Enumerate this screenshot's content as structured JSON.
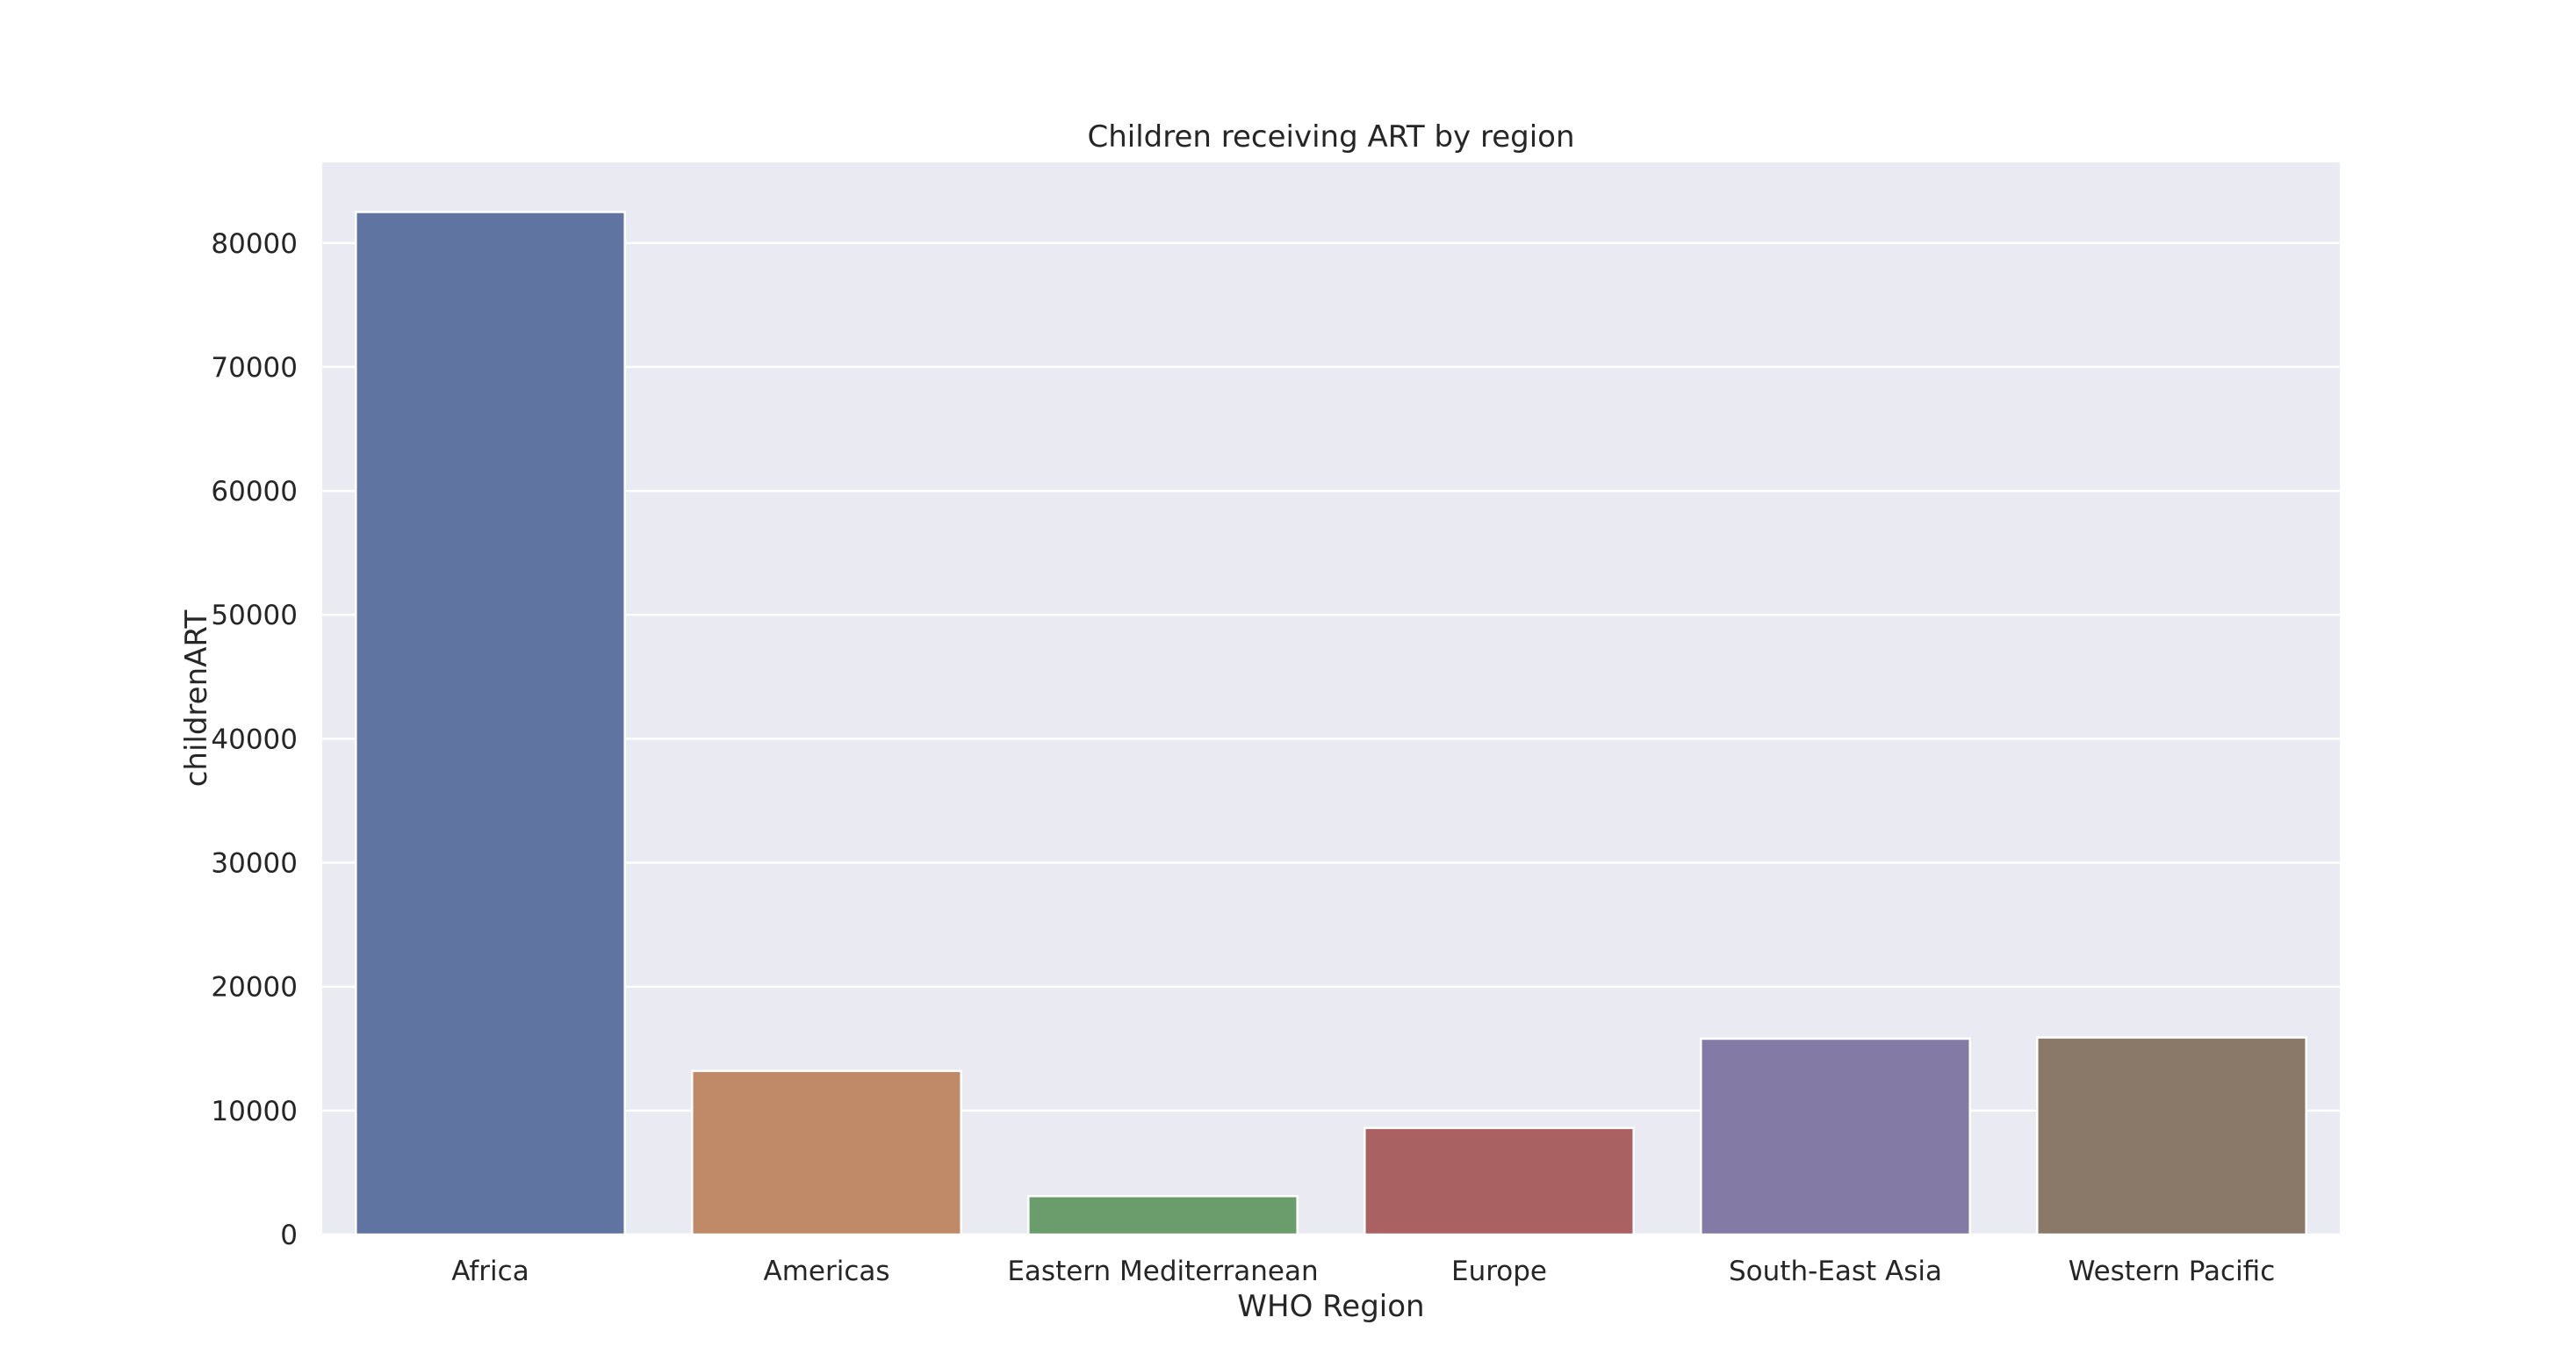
{
  "chart_data": {
    "type": "bar",
    "title": "Children receiving ART by region",
    "xlabel": "WHO Region",
    "ylabel": "childrenART",
    "categories": [
      "Africa",
      "Americas",
      "Eastern Mediterranean",
      "Europe",
      "South-East Asia",
      "Western Pacific"
    ],
    "values": [
      82500,
      13200,
      3100,
      8600,
      15800,
      15900
    ],
    "colors": [
      "#5f74a0",
      "#c08a69",
      "#6b9d6c",
      "#a96161",
      "#837aa6",
      "#8a7868"
    ],
    "ylim": [
      0,
      86500
    ],
    "yticks": [
      0,
      10000,
      20000,
      30000,
      40000,
      50000,
      60000,
      70000,
      80000
    ],
    "ytick_labels": [
      "0",
      "10000",
      "20000",
      "30000",
      "40000",
      "50000",
      "60000",
      "70000",
      "80000"
    ],
    "grid": true,
    "plot_background": "#eaeaf2",
    "grid_color": "#ffffff"
  }
}
